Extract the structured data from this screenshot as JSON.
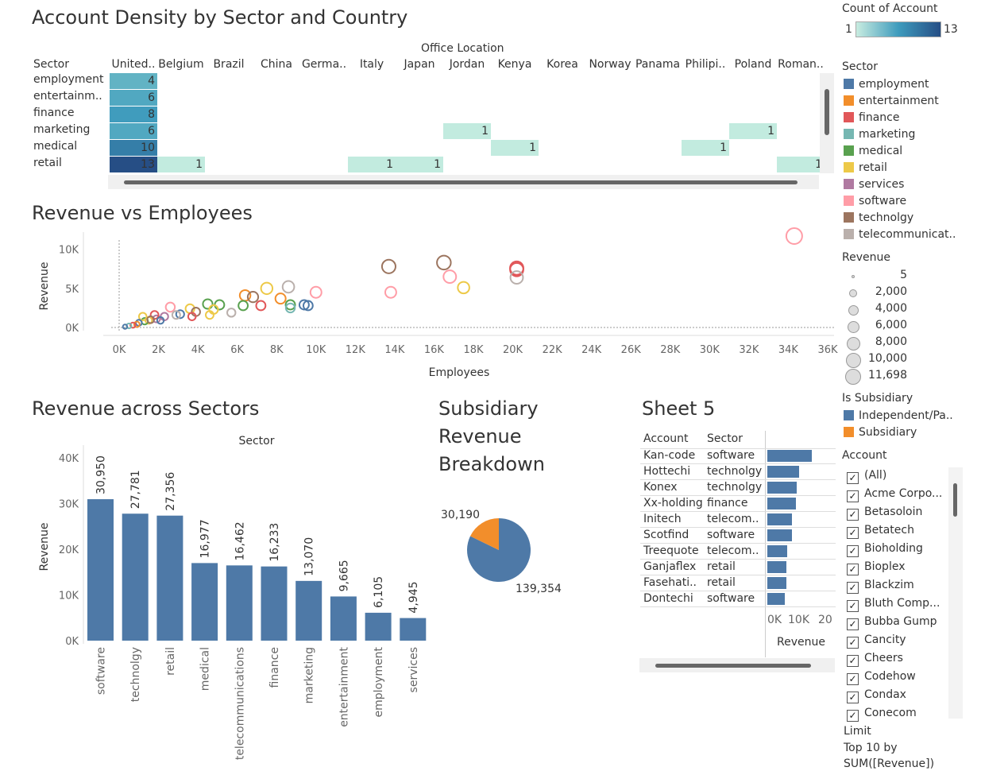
{
  "heatmap": {
    "title": "Account Density by Sector and Country",
    "column_header": "Office Location",
    "row_header": "Sector",
    "columns": [
      "United..",
      "Belgium",
      "Brazil",
      "China",
      "Germa..",
      "Italy",
      "Japan",
      "Jordan",
      "Kenya",
      "Korea",
      "Norway",
      "Panama",
      "Philipi..",
      "Poland",
      "Roman.."
    ],
    "rows": [
      "employment",
      "entertainm..",
      "finance",
      "marketing",
      "medical",
      "retail"
    ],
    "cells": [
      {
        "row": 0,
        "col": 0,
        "value": 4
      },
      {
        "row": 1,
        "col": 0,
        "value": 6
      },
      {
        "row": 2,
        "col": 0,
        "value": 8
      },
      {
        "row": 3,
        "col": 0,
        "value": 6
      },
      {
        "row": 4,
        "col": 0,
        "value": 10
      },
      {
        "row": 5,
        "col": 0,
        "value": 13
      },
      {
        "row": 3,
        "col": 7,
        "value": 1
      },
      {
        "row": 3,
        "col": 13,
        "value": 1
      },
      {
        "row": 4,
        "col": 8,
        "value": 1
      },
      {
        "row": 4,
        "col": 12,
        "value": 1
      },
      {
        "row": 5,
        "col": 1,
        "value": 1
      },
      {
        "row": 5,
        "col": 5,
        "value": 1
      },
      {
        "row": 5,
        "col": 6,
        "value": 1
      },
      {
        "row": 5,
        "col": 14,
        "value": 1
      }
    ]
  },
  "scatter": {
    "title": "Revenue vs Employees",
    "chart_data": {
      "type": "scatter",
      "xlabel": "Employees",
      "ylabel": "Revenue",
      "xlim": [
        0,
        36000
      ],
      "ylim": [
        0,
        12000
      ],
      "x_ticks": [
        "0K",
        "2K",
        "4K",
        "6K",
        "8K",
        "10K",
        "12K",
        "14K",
        "16K",
        "18K",
        "20K",
        "22K",
        "24K",
        "26K",
        "28K",
        "30K",
        "32K",
        "34K",
        "36K"
      ],
      "y_ticks": [
        "0K",
        "5K",
        "10K"
      ],
      "points": [
        {
          "x": 34300,
          "y": 11698,
          "sector": "software"
        },
        {
          "x": 16500,
          "y": 8300,
          "sector": "technolgy"
        },
        {
          "x": 13700,
          "y": 7800,
          "sector": "technolgy"
        },
        {
          "x": 20200,
          "y": 7600,
          "sector": "finance"
        },
        {
          "x": 20200,
          "y": 7400,
          "sector": "finance"
        },
        {
          "x": 20200,
          "y": 6400,
          "sector": "telecommunications"
        },
        {
          "x": 16800,
          "y": 6500,
          "sector": "software"
        },
        {
          "x": 17500,
          "y": 5100,
          "sector": "retail"
        },
        {
          "x": 13800,
          "y": 4500,
          "sector": "software"
        },
        {
          "x": 10000,
          "y": 4500,
          "sector": "software"
        },
        {
          "x": 8600,
          "y": 5200,
          "sector": "telecommunications"
        },
        {
          "x": 7500,
          "y": 5000,
          "sector": "retail"
        },
        {
          "x": 6400,
          "y": 4100,
          "sector": "entertainment"
        },
        {
          "x": 6800,
          "y": 3900,
          "sector": "technolgy"
        },
        {
          "x": 8200,
          "y": 3700,
          "sector": "entertainment"
        },
        {
          "x": 7200,
          "y": 2800,
          "sector": "finance"
        },
        {
          "x": 6300,
          "y": 2800,
          "sector": "medical"
        },
        {
          "x": 8700,
          "y": 2900,
          "sector": "medical"
        },
        {
          "x": 9400,
          "y": 2900,
          "sector": "employment"
        },
        {
          "x": 9600,
          "y": 2800,
          "sector": "employment"
        },
        {
          "x": 8700,
          "y": 2500,
          "sector": "marketing"
        },
        {
          "x": 5100,
          "y": 2900,
          "sector": "medical"
        },
        {
          "x": 4500,
          "y": 3000,
          "sector": "medical"
        },
        {
          "x": 5700,
          "y": 1900,
          "sector": "telecommunications"
        },
        {
          "x": 4800,
          "y": 2300,
          "sector": "retail"
        },
        {
          "x": 4600,
          "y": 1600,
          "sector": "retail"
        },
        {
          "x": 3600,
          "y": 2400,
          "sector": "retail"
        },
        {
          "x": 3900,
          "y": 2000,
          "sector": "technolgy"
        },
        {
          "x": 3100,
          "y": 1700,
          "sector": "employment"
        },
        {
          "x": 2600,
          "y": 2600,
          "sector": "software"
        },
        {
          "x": 2900,
          "y": 1600,
          "sector": "telecommunications"
        },
        {
          "x": 3700,
          "y": 1400,
          "sector": "finance"
        },
        {
          "x": 2300,
          "y": 1400,
          "sector": "services"
        },
        {
          "x": 1900,
          "y": 1100,
          "sector": "services"
        },
        {
          "x": 1800,
          "y": 1600,
          "sector": "finance"
        },
        {
          "x": 1500,
          "y": 900,
          "sector": "retail"
        },
        {
          "x": 1300,
          "y": 800,
          "sector": "medical"
        },
        {
          "x": 1200,
          "y": 1400,
          "sector": "retail"
        },
        {
          "x": 1000,
          "y": 600,
          "sector": "employment"
        },
        {
          "x": 900,
          "y": 400,
          "sector": "entertainment"
        },
        {
          "x": 700,
          "y": 300,
          "sector": "finance"
        },
        {
          "x": 500,
          "y": 200,
          "sector": "marketing"
        },
        {
          "x": 300,
          "y": 100,
          "sector": "employment"
        },
        {
          "x": 1600,
          "y": 1000,
          "sector": "technolgy"
        },
        {
          "x": 2100,
          "y": 900,
          "sector": "employment"
        }
      ]
    }
  },
  "bars": {
    "title": "Revenue across Sectors",
    "chart_data": {
      "type": "bar",
      "title": "Sector",
      "ylabel": "Revenue",
      "ylim": [
        0,
        40000
      ],
      "y_ticks": [
        "0K",
        "10K",
        "20K",
        "30K",
        "40K"
      ],
      "categories": [
        "software",
        "technolgy",
        "retail",
        "medical",
        "telecommunications",
        "finance",
        "marketing",
        "entertainment",
        "employment",
        "services"
      ],
      "values": [
        30950,
        27781,
        27356,
        16977,
        16462,
        16233,
        13070,
        9665,
        6105,
        4945
      ],
      "value_labels": [
        "30,950",
        "27,781",
        "27,356",
        "16,977",
        "16,462",
        "16,233",
        "13,070",
        "9,665",
        "6,105",
        "4,945"
      ],
      "color": "#4e79a7"
    }
  },
  "pie": {
    "title_lines": [
      "Subsidiary",
      "Revenue",
      "Breakdown"
    ],
    "chart_data": {
      "type": "pie",
      "slices": [
        {
          "name": "Independent/Pa..",
          "value": 139354,
          "label": "139,354",
          "color": "#4e79a7"
        },
        {
          "name": "Subsidiary",
          "value": 30190,
          "label": "30,190",
          "color": "#f28e2b"
        }
      ]
    }
  },
  "sheet5": {
    "title": "Sheet 5",
    "col_account": "Account",
    "col_sector": "Sector",
    "axis_title": "Revenue",
    "axis_ticks": [
      "0K",
      "10K",
      "20"
    ],
    "chart_data": {
      "type": "bar",
      "xlim": [
        0,
        20000
      ],
      "rows": [
        {
          "account": "Kan-code",
          "sector": "software",
          "value": 11698
        },
        {
          "account": "Hottechi",
          "sector": "technolgy",
          "value": 8300
        },
        {
          "account": "Konex",
          "sector": "technolgy",
          "value": 7800
        },
        {
          "account": "Xx-holding",
          "sector": "finance",
          "value": 7600
        },
        {
          "account": "Initech",
          "sector": "telecom..",
          "value": 6400
        },
        {
          "account": "Scotfind",
          "sector": "software",
          "value": 6500
        },
        {
          "account": "Treequote",
          "sector": "telecom..",
          "value": 5200
        },
        {
          "account": "Ganjaflex",
          "sector": "retail",
          "value": 5100
        },
        {
          "account": "Fasehati..",
          "sector": "retail",
          "value": 5000
        },
        {
          "account": "Dontechi",
          "sector": "software",
          "value": 4500
        }
      ]
    }
  },
  "legend": {
    "count_title": "Count of Account",
    "count_min": "1",
    "count_max": "13",
    "sector_title": "Sector",
    "sectors": [
      {
        "name": "employment",
        "color": "#4e79a7"
      },
      {
        "name": "entertainment",
        "color": "#f28e2b"
      },
      {
        "name": "finance",
        "color": "#e15759"
      },
      {
        "name": "marketing",
        "color": "#76b7b2"
      },
      {
        "name": "medical",
        "color": "#59a14f"
      },
      {
        "name": "retail",
        "color": "#edc948"
      },
      {
        "name": "services",
        "color": "#b07aa1"
      },
      {
        "name": "software",
        "color": "#ff9da7"
      },
      {
        "name": "technolgy",
        "color": "#9c755f"
      },
      {
        "name": "telecommunicat..",
        "color": "#bab0ac"
      }
    ],
    "revenue_title": "Revenue",
    "revenue_sizes": [
      "5",
      "2,000",
      "4,000",
      "6,000",
      "8,000",
      "10,000",
      "11,698"
    ],
    "subsidiary_title": "Is Subsidiary",
    "subsidiary": [
      {
        "name": "Independent/Pa..",
        "color": "#4e79a7"
      },
      {
        "name": "Subsidiary",
        "color": "#f28e2b"
      }
    ],
    "account_title": "Account",
    "accounts": [
      "(All)",
      "Acme Corpo...",
      "Betasoloin",
      "Betatech",
      "Bioholding",
      "Bioplex",
      "Blackzim",
      "Bluth Comp...",
      "Bubba Gump",
      "Cancity",
      "Cheers",
      "Codehow",
      "Condax",
      "Conecom"
    ],
    "limit_title": "Limit",
    "limit_text_1": "Top 10 by",
    "limit_text_2": "SUM([Revenue])"
  }
}
